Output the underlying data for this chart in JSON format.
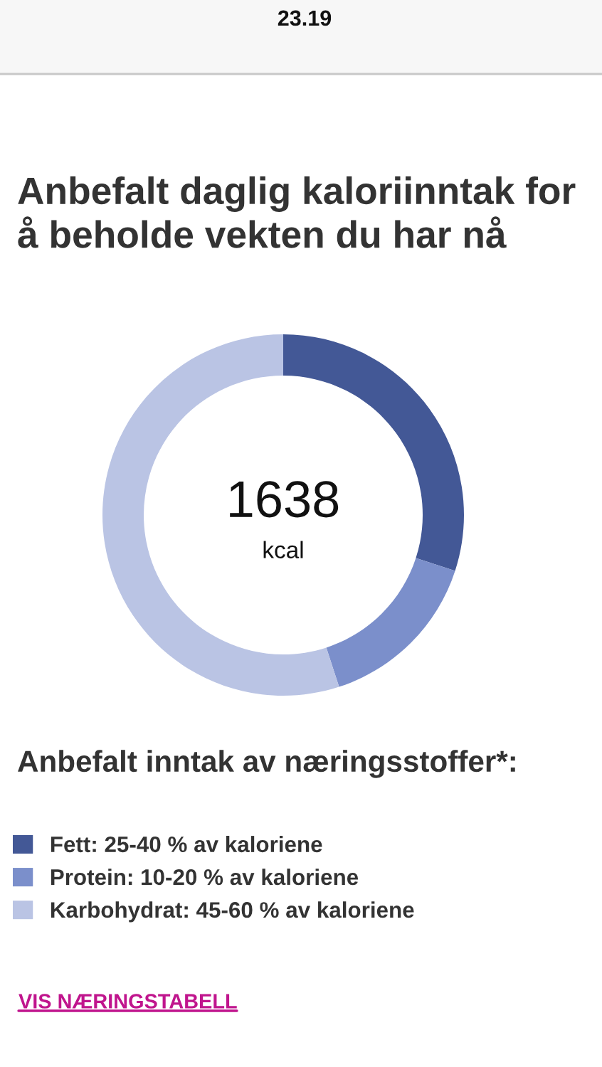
{
  "chart_data": {
    "type": "donut",
    "title": "Anbefalt daglig kaloriinntak for\nå beholde vekten du har nå",
    "categories": [
      "Fett: 25-40 % av kaloriene",
      "Protein: 10-20 % av kaloriene",
      "Karbohydrat: 45-60 % av kaloriene"
    ],
    "values": [
      30,
      15,
      55
    ],
    "colors": [
      "#435896",
      "#7b8fcb",
      "#bac4e4"
    ],
    "legend_title": "Anbefalt inntak av næringsstoffer*:",
    "legend": "bottom",
    "annotations": [
      "1638",
      "kcal",
      "VIS NÆRINGSTABELL",
      "23.19"
    ]
  }
}
